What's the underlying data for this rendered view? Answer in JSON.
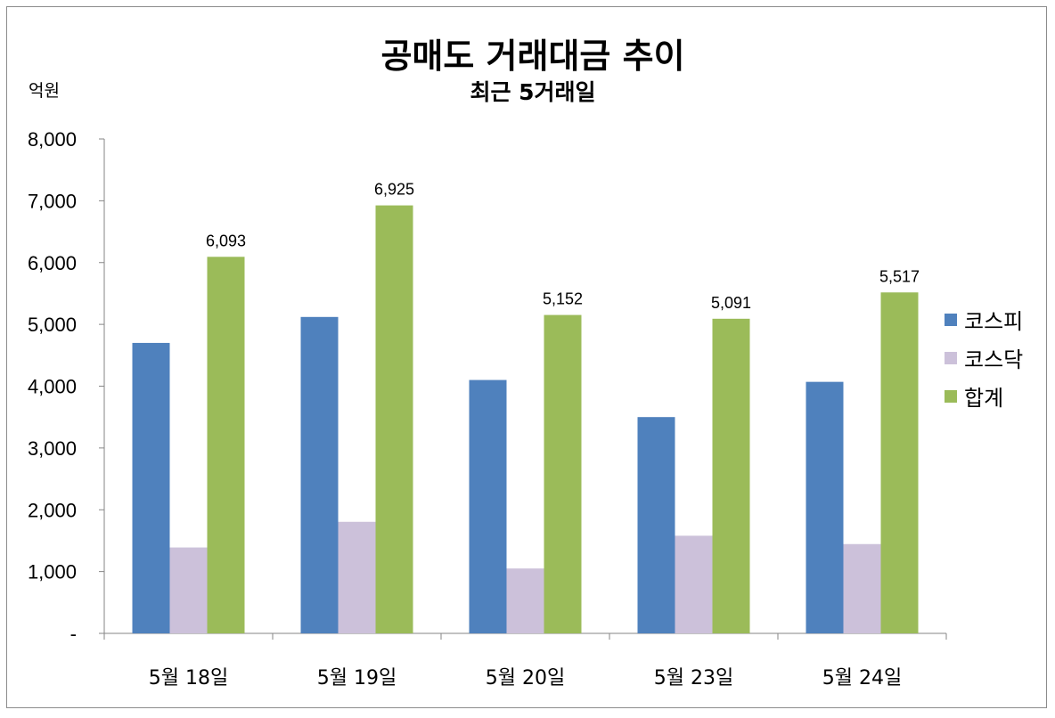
{
  "chart_data": {
    "type": "bar",
    "title": "공매도 거래대금 추이",
    "subtitle": "최근 5거래일",
    "ylabel": "억원",
    "xlabel": "",
    "categories": [
      "5월 18일",
      "5월 19일",
      "5월 20일",
      "5월 23일",
      "5월 24일"
    ],
    "ylim": [
      0,
      8000
    ],
    "yticks": [
      0,
      1000,
      2000,
      3000,
      4000,
      5000,
      6000,
      7000,
      8000
    ],
    "ytick_labels": [
      "-",
      "1,000",
      "2,000",
      "3,000",
      "4,000",
      "5,000",
      "6,000",
      "7,000",
      "8,000"
    ],
    "legend_position": "right",
    "grid": false,
    "series": [
      {
        "name": "코스피",
        "color": "#4f81bd",
        "values": [
          4700,
          5120,
          4100,
          3500,
          4070
        ]
      },
      {
        "name": "코스닥",
        "color": "#ccc1da",
        "values": [
          1390,
          1805,
          1050,
          1580,
          1445
        ]
      },
      {
        "name": "합계",
        "color": "#9bbb59",
        "values": [
          6093,
          6925,
          5152,
          5091,
          5517
        ],
        "data_labels": [
          "6,093",
          "6,925",
          "5,152",
          "5,091",
          "5,517"
        ]
      }
    ]
  }
}
